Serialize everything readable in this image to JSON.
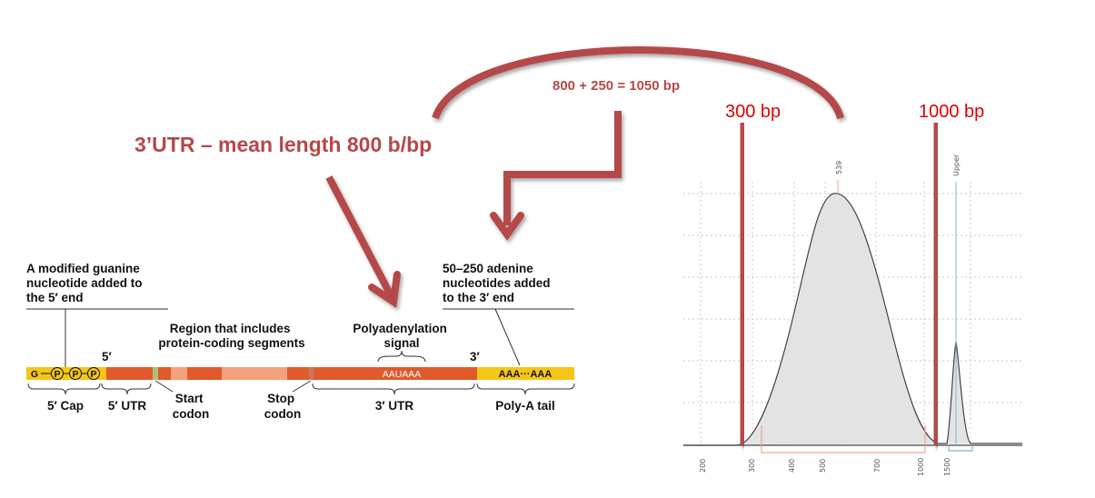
{
  "headline": "3’UTR – mean length 800 b/bp",
  "sum_label": "800 + 250 = 1050 bp",
  "markers": {
    "left": "300 bp",
    "right": "1000 bp"
  },
  "mrna": {
    "cap_note": [
      "A modified guanine",
      "nucleotide added to",
      "the 5′ end"
    ],
    "coding_note": [
      "Region that includes",
      "protein-coding segments"
    ],
    "polyA_signal_note": [
      "Polyadenylation",
      "signal"
    ],
    "adenine_note": [
      "50–250 adenine",
      "nucleotides added",
      "to the 3′ end"
    ],
    "five_prime": "5′",
    "three_prime": "3′",
    "cap_g": "G",
    "cap_p": "P",
    "signal_seq": "AAUAAA",
    "polyA_seq": "AAA···AAA",
    "bottom": {
      "cap": "5′ Cap",
      "utr5": "5′ UTR",
      "start": [
        "Start",
        "codon"
      ],
      "stop": [
        "Stop",
        "codon"
      ],
      "utr3": "3′ UTR",
      "polyA": "Poly-A tail"
    },
    "colors": {
      "strand": "#e05a2c",
      "coding_light": "#f4a27c",
      "cap": "#f5c518",
      "arrow": "#b5484a"
    }
  },
  "chart_data": {
    "type": "area",
    "title": "",
    "xlabel": "",
    "ylabel": "",
    "x_ticks": [
      "200",
      "300",
      "400",
      "500",
      "700",
      "1000",
      "1500"
    ],
    "peak_labels": [
      "539",
      "Upper"
    ],
    "series": [
      {
        "x": [
          300,
          350,
          400,
          450,
          500,
          539,
          600,
          700,
          800,
          900,
          1000,
          1060
        ],
        "values": [
          0,
          0.05,
          0.3,
          0.65,
          0.95,
          1.0,
          0.92,
          0.65,
          0.35,
          0.12,
          0.02,
          0
        ]
      },
      {
        "x": [
          1450,
          1500,
          1550
        ],
        "values": [
          0,
          0.42,
          0
        ]
      }
    ],
    "grid": true
  }
}
